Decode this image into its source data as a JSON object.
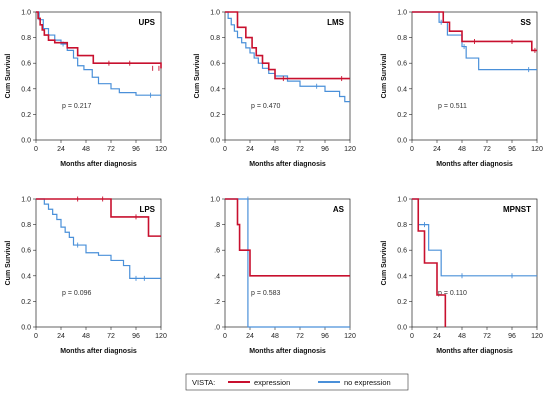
{
  "legend": {
    "label": "VISTA:",
    "items": [
      {
        "name": "expression",
        "color": "#c8102e"
      },
      {
        "name": "no expression",
        "color": "#4a90d9"
      }
    ]
  },
  "chart_data": [
    {
      "type": "line",
      "title": "UPS",
      "xlabel": "Months after diagnosis",
      "ylabel": "Cum Survival",
      "xlim": [
        0,
        120
      ],
      "ylim": [
        0,
        1.0
      ],
      "xticks": [
        "0",
        "24",
        "48",
        "72",
        "96",
        "120"
      ],
      "yticks": [
        "0.0",
        "0.2",
        "0.4",
        "0.6",
        "0.8",
        "1.0"
      ],
      "annotation": "p = 0.217",
      "series": [
        {
          "name": "expression",
          "x": [
            0,
            2,
            4,
            6,
            8,
            12,
            18,
            30,
            40,
            55,
            120
          ],
          "y": [
            1.0,
            0.95,
            0.9,
            0.86,
            0.82,
            0.78,
            0.76,
            0.72,
            0.66,
            0.6,
            0.56
          ],
          "censored": [
            [
              70,
              0.6
            ],
            [
              90,
              0.6
            ],
            [
              112,
              0.56
            ],
            [
              118,
              0.56
            ]
          ]
        },
        {
          "name": "no expression",
          "x": [
            0,
            3,
            7,
            12,
            18,
            24,
            30,
            36,
            40,
            46,
            54,
            60,
            72,
            80,
            96,
            120
          ],
          "y": [
            1.0,
            0.94,
            0.87,
            0.82,
            0.78,
            0.75,
            0.7,
            0.64,
            0.58,
            0.55,
            0.49,
            0.44,
            0.4,
            0.37,
            0.35,
            0.35
          ],
          "censored": [
            [
              26,
              0.75
            ],
            [
              110,
              0.35
            ]
          ]
        }
      ]
    },
    {
      "type": "line",
      "title": "LMS",
      "xlabel": "Months after diagnosis",
      "ylabel": "Cum Survival",
      "xlim": [
        0,
        120
      ],
      "ylim": [
        0,
        1.0
      ],
      "xticks": [
        "0",
        "24",
        "48",
        "72",
        "96",
        "120"
      ],
      "yticks": [
        "0.0",
        "0.2",
        "0.4",
        "0.6",
        "0.8",
        "1.0"
      ],
      "annotation": "p = 0.470",
      "series": [
        {
          "name": "expression",
          "x": [
            0,
            12,
            20,
            26,
            30,
            36,
            42,
            48,
            120
          ],
          "y": [
            1.0,
            0.88,
            0.8,
            0.72,
            0.66,
            0.6,
            0.55,
            0.48,
            0.48
          ],
          "censored": [
            [
              56,
              0.48
            ],
            [
              112,
              0.48
            ]
          ]
        },
        {
          "name": "no expression",
          "x": [
            0,
            3,
            6,
            9,
            12,
            16,
            20,
            24,
            28,
            32,
            36,
            42,
            48,
            60,
            72,
            96,
            110,
            115,
            120
          ],
          "y": [
            1.0,
            0.95,
            0.9,
            0.85,
            0.8,
            0.76,
            0.72,
            0.68,
            0.64,
            0.6,
            0.56,
            0.52,
            0.5,
            0.46,
            0.42,
            0.38,
            0.34,
            0.3,
            0.3
          ],
          "censored": [
            [
              88,
              0.42
            ]
          ]
        }
      ]
    },
    {
      "type": "line",
      "title": "SS",
      "xlabel": "Months after diagnosis",
      "ylabel": "Cum Survival",
      "xlim": [
        0,
        120
      ],
      "ylim": [
        0,
        1.0
      ],
      "xticks": [
        "0",
        "24",
        "48",
        "72",
        "96",
        "120"
      ],
      "yticks": [
        "0.0",
        "0.2",
        "0.4",
        "0.6",
        "0.8",
        "1.0"
      ],
      "annotation": "p = 0.511",
      "series": [
        {
          "name": "expression",
          "x": [
            0,
            30,
            36,
            48,
            115,
            120
          ],
          "y": [
            1.0,
            0.92,
            0.85,
            0.77,
            0.7,
            0.7
          ],
          "censored": [
            [
              60,
              0.77
            ],
            [
              96,
              0.77
            ],
            [
              118,
              0.7
            ]
          ]
        },
        {
          "name": "no expression",
          "x": [
            0,
            26,
            34,
            40,
            48,
            52,
            64,
            120
          ],
          "y": [
            1.0,
            0.92,
            0.82,
            0.82,
            0.73,
            0.64,
            0.55,
            0.55
          ],
          "censored": [
            [
              28,
              0.92
            ],
            [
              50,
              0.73
            ],
            [
              112,
              0.55
            ]
          ]
        }
      ]
    },
    {
      "type": "line",
      "title": "LPS",
      "xlabel": "Months after diagnosis",
      "ylabel": "Cum Survival",
      "xlim": [
        0,
        120
      ],
      "ylim": [
        0,
        1.0
      ],
      "xticks": [
        "0",
        "24",
        "48",
        "72",
        "96",
        "120"
      ],
      "yticks": [
        "0.0",
        "0.2",
        "0.4",
        "0.6",
        "0.8",
        "1.0"
      ],
      "annotation": "p = 0.096",
      "series": [
        {
          "name": "expression",
          "x": [
            0,
            72,
            108,
            120
          ],
          "y": [
            1.0,
            0.86,
            0.71,
            0.71
          ],
          "censored": [
            [
              40,
              1.0
            ],
            [
              64,
              1.0
            ],
            [
              96,
              0.86
            ]
          ]
        },
        {
          "name": "no expression",
          "x": [
            0,
            8,
            12,
            16,
            20,
            24,
            28,
            32,
            36,
            48,
            60,
            72,
            84,
            90,
            120
          ],
          "y": [
            1.0,
            0.96,
            0.92,
            0.88,
            0.84,
            0.78,
            0.74,
            0.7,
            0.64,
            0.58,
            0.56,
            0.52,
            0.48,
            0.38,
            0.38
          ],
          "censored": [
            [
              40,
              0.64
            ],
            [
              96,
              0.38
            ],
            [
              104,
              0.38
            ]
          ]
        }
      ]
    },
    {
      "type": "line",
      "title": "AS",
      "xlabel": "Months after diagnosis",
      "ylabel": "",
      "xlim": [
        0,
        120
      ],
      "ylim": [
        0,
        1.0
      ],
      "xticks": [
        "0",
        "24",
        "48",
        "72",
        "96",
        "120"
      ],
      "yticks": [
        ".0",
        ".2",
        ".4",
        ".6",
        ".8",
        "1.0"
      ],
      "annotation": "p = 0.583",
      "series": [
        {
          "name": "expression",
          "x": [
            0,
            12,
            14,
            24,
            120
          ],
          "y": [
            1.0,
            0.8,
            0.6,
            0.4,
            0.4
          ],
          "censored": []
        },
        {
          "name": "no expression",
          "x": [
            0,
            22,
            120
          ],
          "y": [
            1.0,
            0.0,
            0.0
          ],
          "censored": [
            [
              22,
              1.0
            ]
          ]
        }
      ]
    },
    {
      "type": "line",
      "title": "MPNST",
      "xlabel": "Months after diagnosis",
      "ylabel": "Cum Survival",
      "xlim": [
        0,
        120
      ],
      "ylim": [
        0,
        1.0
      ],
      "xticks": [
        "0",
        "24",
        "48",
        "72",
        "96",
        "120"
      ],
      "yticks": [
        "0.0",
        "0.2",
        "0.4",
        "0.6",
        "0.8",
        "1.0"
      ],
      "annotation": "p = 0.110",
      "series": [
        {
          "name": "expression",
          "x": [
            0,
            6,
            12,
            24,
            32,
            32
          ],
          "y": [
            1.0,
            0.75,
            0.5,
            0.25,
            0.0,
            0.0
          ],
          "censored": []
        },
        {
          "name": "no expression",
          "x": [
            0,
            6,
            16,
            28,
            120
          ],
          "y": [
            1.0,
            0.8,
            0.6,
            0.4,
            0.4
          ],
          "censored": [
            [
              12,
              0.8
            ],
            [
              48,
              0.4
            ],
            [
              96,
              0.4
            ]
          ]
        }
      ]
    }
  ]
}
